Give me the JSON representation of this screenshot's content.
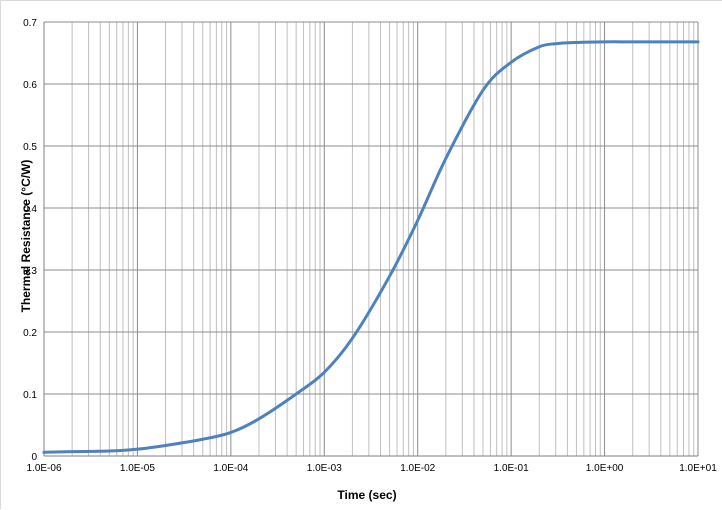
{
  "chart_data": {
    "type": "line",
    "title": "",
    "xlabel": "Time (sec)",
    "ylabel": "Thermal Resistance (°C/W)",
    "x_scale": "log",
    "xlim": [
      1e-06,
      10
    ],
    "ylim": [
      0,
      0.7
    ],
    "x_ticks": [
      "1.0E-06",
      "1.0E-05",
      "1.0E-04",
      "1.0E-03",
      "1.0E-02",
      "1.0E-01",
      "1.0E+00",
      "1.0E+01"
    ],
    "y_ticks": [
      "0",
      "0.1",
      "0.2",
      "0.3",
      "0.4",
      "0.5",
      "0.6",
      "0.7"
    ],
    "grid": true,
    "legend": "none",
    "series": [
      {
        "color": "#4f81bd",
        "x": [
          1e-06,
          2e-06,
          5e-06,
          1e-05,
          2e-05,
          5e-05,
          0.0001,
          0.0002,
          0.0005,
          0.001,
          0.002,
          0.005,
          0.01,
          0.02,
          0.05,
          0.1,
          0.2,
          0.3,
          0.5,
          1,
          2,
          5,
          10
        ],
        "y": [
          0.006,
          0.007,
          0.008,
          0.011,
          0.017,
          0.027,
          0.038,
          0.06,
          0.1,
          0.135,
          0.19,
          0.29,
          0.38,
          0.48,
          0.59,
          0.635,
          0.66,
          0.665,
          0.667,
          0.668,
          0.668,
          0.668,
          0.668
        ]
      }
    ]
  }
}
